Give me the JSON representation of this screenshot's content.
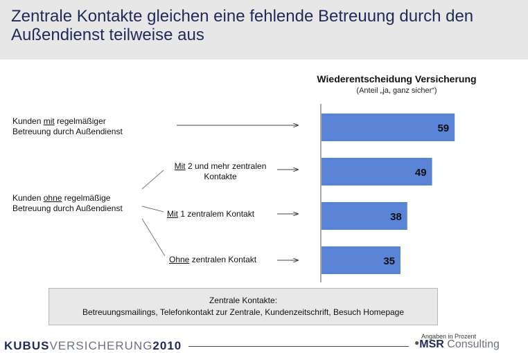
{
  "title": "Zentrale Kontakte gleichen eine fehlende Betreuung durch den Außendienst teilweise aus",
  "labels": {
    "with_care_prefix": "Kunden ",
    "with_care_key": "mit",
    "with_care_rest": " regelmäßiger",
    "with_care_line2": "Betreuung durch Außendienst",
    "without_care_prefix": "Kunden ",
    "without_care_key": "ohne",
    "without_care_rest": " regelmäßige",
    "without_care_line2": "Betreuung durch Außendienst",
    "sub1_key": "Mit",
    "sub1_rest": " 2 und mehr zentralen",
    "sub1_line2": "Kontakte",
    "sub2_key": "Mit",
    "sub2_rest": " 1 zentralem Kontakt",
    "sub3_key": "Ohne",
    "sub3_rest": " zentralen Kontakt"
  },
  "legend": {
    "title": "Zentrale Kontakte:",
    "text": "Betreuungsmailings, Telefonkontakt zur Zentrale, Kundenzeitschrift, Besuch Homepage"
  },
  "note": "Angaben in Prozent",
  "brand": {
    "left_bold": "KUBUS",
    "left_light": "VERSICHERUNG",
    "left_year": "2010",
    "right_bold": "MSR",
    "right_light": " Consulting"
  },
  "colors": {
    "bar": "#5b84d6",
    "title": "#1f2a5a",
    "band": "#e7e7e7"
  },
  "chart_data": {
    "type": "bar",
    "orientation": "horizontal",
    "title": "Wiederentscheidung Versicherung",
    "subtitle": "(Anteil „ja, ganz sicher“)",
    "categories": [
      "Kunden mit regelmäßiger Betreuung durch Außendienst",
      "Mit 2 und mehr zentralen Kontakte",
      "Mit 1 zentralem Kontakt",
      "Ohne zentralen Kontakt"
    ],
    "values": [
      59,
      49,
      38,
      35
    ],
    "unit": "%",
    "xlim": [
      0,
      70
    ]
  }
}
